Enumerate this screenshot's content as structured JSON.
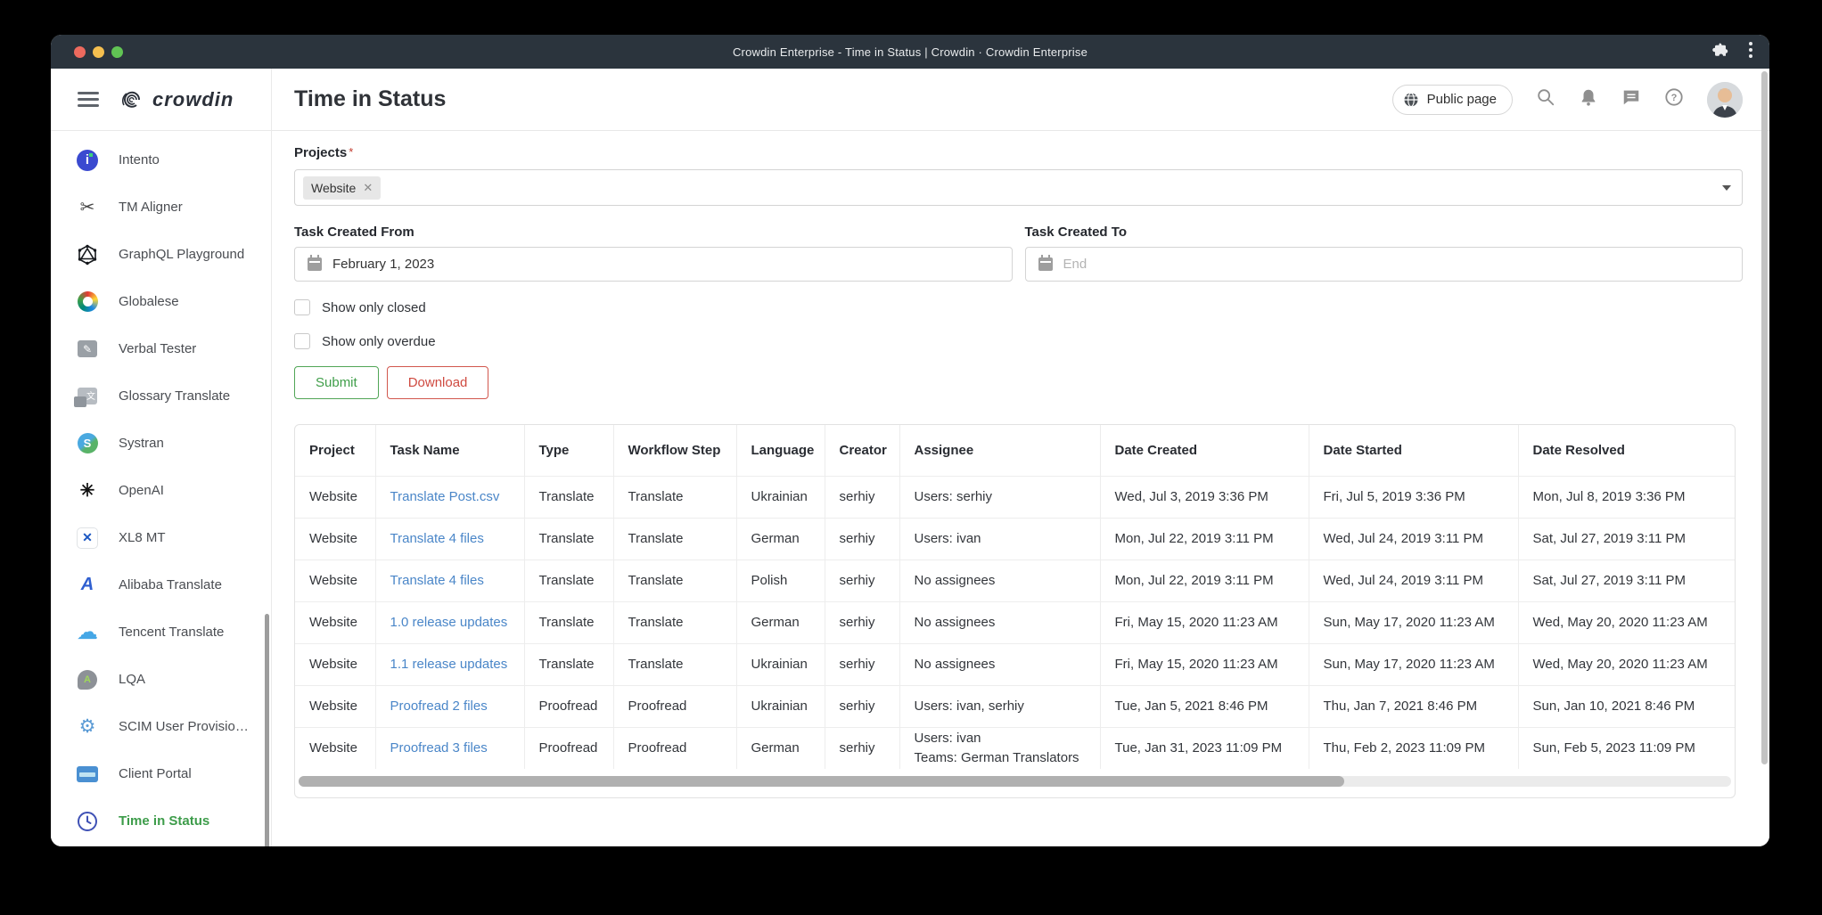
{
  "titlebar": {
    "title": "Crowdin Enterprise - Time in Status | Crowdin · Crowdin Enterprise"
  },
  "sidebar": {
    "logo_text": "crowdin",
    "items": [
      {
        "label": "Intento",
        "icon": "intento-icon",
        "active": false
      },
      {
        "label": "TM Aligner",
        "icon": "scissors-icon",
        "active": false
      },
      {
        "label": "GraphQL Playground",
        "icon": "graphql-icon",
        "active": false
      },
      {
        "label": "Globalese",
        "icon": "globalese-icon",
        "active": false
      },
      {
        "label": "Verbal Tester",
        "icon": "chat-pen-icon",
        "active": false
      },
      {
        "label": "Glossary Translate",
        "icon": "glossary-icon",
        "active": false
      },
      {
        "label": "Systran",
        "icon": "systran-icon",
        "active": false
      },
      {
        "label": "OpenAI",
        "icon": "openai-icon",
        "active": false
      },
      {
        "label": "XL8 MT",
        "icon": "xl8-icon",
        "active": false
      },
      {
        "label": "Alibaba Translate",
        "icon": "alibaba-icon",
        "active": false
      },
      {
        "label": "Tencent Translate",
        "icon": "cloud-icon",
        "active": false
      },
      {
        "label": "LQA",
        "icon": "lqa-icon",
        "active": false
      },
      {
        "label": "SCIM User Provisio…",
        "icon": "gear-icon",
        "active": false
      },
      {
        "label": "Client Portal",
        "icon": "monitor-icon",
        "active": false
      },
      {
        "label": "Time in Status",
        "icon": "clock-icon",
        "active": true
      }
    ]
  },
  "header": {
    "title": "Time in Status",
    "public_page_label": "Public page"
  },
  "form": {
    "projects_label": "Projects",
    "selected_project": "Website",
    "from_label": "Task Created From",
    "from_value": "February 1, 2023",
    "to_label": "Task Created To",
    "to_placeholder": "End",
    "checkbox_closed": "Show only closed",
    "checkbox_overdue": "Show only overdue",
    "submit_label": "Submit",
    "download_label": "Download"
  },
  "table": {
    "columns": [
      "Project",
      "Task Name",
      "Type",
      "Workflow Step",
      "Language",
      "Creator",
      "Assignee",
      "Date Created",
      "Date Started",
      "Date Resolved"
    ],
    "rows": [
      {
        "project": "Website",
        "task": "Translate Post.csv",
        "type": "Translate",
        "step": "Translate",
        "language": "Ukrainian",
        "creator": "serhiy",
        "assignee": "Users: serhiy",
        "created": "Wed, Jul 3, 2019 3:36 PM",
        "started": "Fri, Jul 5, 2019 3:36 PM",
        "resolved": "Mon, Jul 8, 2019 3:36 PM"
      },
      {
        "project": "Website",
        "task": "Translate 4 files",
        "type": "Translate",
        "step": "Translate",
        "language": "German",
        "creator": "serhiy",
        "assignee": "Users: ivan",
        "created": "Mon, Jul 22, 2019 3:11 PM",
        "started": "Wed, Jul 24, 2019 3:11 PM",
        "resolved": "Sat, Jul 27, 2019 3:11 PM"
      },
      {
        "project": "Website",
        "task": "Translate 4 files",
        "type": "Translate",
        "step": "Translate",
        "language": "Polish",
        "creator": "serhiy",
        "assignee": "No assignees",
        "created": "Mon, Jul 22, 2019 3:11 PM",
        "started": "Wed, Jul 24, 2019 3:11 PM",
        "resolved": "Sat, Jul 27, 2019 3:11 PM"
      },
      {
        "project": "Website",
        "task": "1.0 release updates",
        "type": "Translate",
        "step": "Translate",
        "language": "German",
        "creator": "serhiy",
        "assignee": "No assignees",
        "created": "Fri, May 15, 2020 11:23 AM",
        "started": "Sun, May 17, 2020 11:23 AM",
        "resolved": "Wed, May 20, 2020 11:23 AM"
      },
      {
        "project": "Website",
        "task": "1.1 release updates",
        "type": "Translate",
        "step": "Translate",
        "language": "Ukrainian",
        "creator": "serhiy",
        "assignee": "No assignees",
        "created": "Fri, May 15, 2020 11:23 AM",
        "started": "Sun, May 17, 2020 11:23 AM",
        "resolved": "Wed, May 20, 2020 11:23 AM"
      },
      {
        "project": "Website",
        "task": "Proofread 2 files",
        "type": "Proofread",
        "step": "Proofread",
        "language": "Ukrainian",
        "creator": "serhiy",
        "assignee": "Users: ivan, serhiy",
        "created": "Tue, Jan 5, 2021 8:46 PM",
        "started": "Thu, Jan 7, 2021 8:46 PM",
        "resolved": "Sun, Jan 10, 2021 8:46 PM"
      },
      {
        "project": "Website",
        "task": "Proofread 3 files",
        "type": "Proofread",
        "step": "Proofread",
        "language": "German",
        "creator": "serhiy",
        "assignee": "Users: ivan\nTeams: German Translators",
        "created": "Tue, Jan 31, 2023 11:09 PM",
        "started": "Thu, Feb 2, 2023 11:09 PM",
        "resolved": "Sun, Feb 5, 2023 11:09 PM"
      }
    ]
  }
}
